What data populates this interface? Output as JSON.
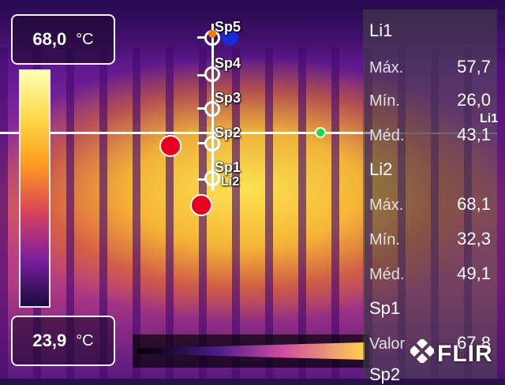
{
  "scale": {
    "max_value": "68,0",
    "min_value": "23,9",
    "unit": "°C"
  },
  "spots": [
    {
      "label": "Sp5"
    },
    {
      "label": "Sp4"
    },
    {
      "label": "Sp3"
    },
    {
      "label": "Sp2"
    },
    {
      "label": "Sp1"
    }
  ],
  "line_overlay_label": "Li2",
  "panel": {
    "li1": {
      "name": "Li1",
      "max_key": "Máx.",
      "max": "57,7",
      "min_key": "Mín.",
      "min": "26,0",
      "avg_key": "Méd.",
      "avg": "43,1"
    },
    "li2": {
      "name": "Li2",
      "max_key": "Máx.",
      "max": "68,1",
      "min_key": "Mín.",
      "min": "32,3",
      "avg_key": "Méd.",
      "avg": "49,1"
    },
    "sp1": {
      "name": "Sp1",
      "val_key": "Valor",
      "val": "67,8"
    },
    "sp2": {
      "name": "Sp2"
    }
  },
  "edge_label": "Li1",
  "brand": "FLIR",
  "colors": {
    "marker_red": "#e6001c",
    "marker_blue": "#1a2ad6",
    "marker_green": "#1fd83a"
  },
  "icons": [
    "flir-logo-icon"
  ]
}
